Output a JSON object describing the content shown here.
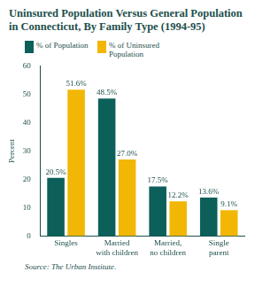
{
  "chart_data": {
    "type": "bar",
    "title": "Uninsured Population Versus General Population in Connecticut, By Family Type (1994-95)",
    "y_label": "Percent",
    "source": "Source: The Urban Institute.",
    "categories": [
      "Singles",
      "Married with children",
      "Married, no children",
      "Single parent"
    ],
    "series": [
      {
        "name": "% of Population",
        "color": "#0d5f5a",
        "values": [
          20.5,
          48.5,
          17.5,
          13.6
        ],
        "value_labels": [
          "20.5%",
          "48.5%",
          "17.5%",
          "13.6%"
        ]
      },
      {
        "name": "% of Uninsured Population",
        "color": "#f2b705",
        "values": [
          51.6,
          27.0,
          12.2,
          9.1
        ],
        "value_labels": [
          "51.6%",
          "27.0%",
          "12.2%",
          "9.1%"
        ]
      }
    ],
    "ylim": [
      0,
      60
    ],
    "yticks": [
      0,
      10,
      20,
      30,
      40,
      50,
      60
    ],
    "grid": false,
    "legend": "top-left",
    "data_labels": true
  }
}
